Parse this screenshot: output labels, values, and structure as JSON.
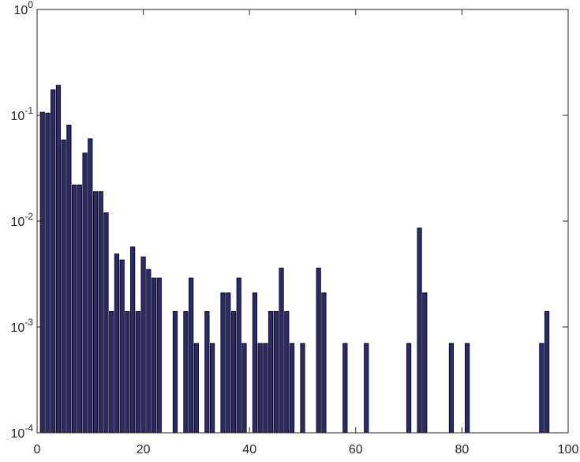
{
  "chart_data": {
    "type": "bar",
    "yscale": "log",
    "color": "#2b2a6b",
    "x": [
      1,
      2,
      3,
      4,
      5,
      6,
      7,
      8,
      9,
      10,
      11,
      12,
      13,
      14,
      15,
      16,
      17,
      18,
      19,
      20,
      21,
      22,
      23,
      26,
      28,
      29,
      30,
      32,
      33,
      35,
      36,
      37,
      38,
      39,
      41,
      42,
      43,
      44,
      45,
      46,
      47,
      48,
      50,
      53,
      54,
      58,
      62,
      70,
      72,
      73,
      78,
      81,
      95,
      96
    ],
    "values": [
      0.107,
      0.105,
      0.174,
      0.192,
      0.0586,
      0.081,
      0.022,
      0.022,
      0.044,
      0.06,
      0.019,
      0.019,
      0.012,
      0.0014,
      0.0049,
      0.0043,
      0.0014,
      0.0057,
      0.0014,
      0.0046,
      0.0035,
      0.0029,
      0.0029,
      0.0014,
      0.0014,
      0.0029,
      0.0007,
      0.0014,
      0.0007,
      0.0021,
      0.0021,
      0.0014,
      0.0029,
      0.0007,
      0.0021,
      0.0007,
      0.0007,
      0.0014,
      0.0014,
      0.0036,
      0.0014,
      0.0007,
      0.0007,
      0.0036,
      0.0021,
      0.0007,
      0.0007,
      0.0007,
      0.0086,
      0.0021,
      0.0007,
      0.0007,
      0.0007,
      0.0014
    ],
    "xlim": [
      0,
      100
    ],
    "xticks": [
      0,
      20,
      40,
      60,
      80,
      100
    ],
    "ylim": [
      0.0001,
      1
    ],
    "yticks": [
      {
        "value": 0.0001,
        "label": "10",
        "exponent": "-4"
      },
      {
        "value": 0.001,
        "label": "10",
        "exponent": "-3"
      },
      {
        "value": 0.01,
        "label": "10",
        "exponent": "-2"
      },
      {
        "value": 0.1,
        "label": "10",
        "exponent": "-1"
      },
      {
        "value": 1,
        "label": "10",
        "exponent": "0"
      }
    ]
  }
}
